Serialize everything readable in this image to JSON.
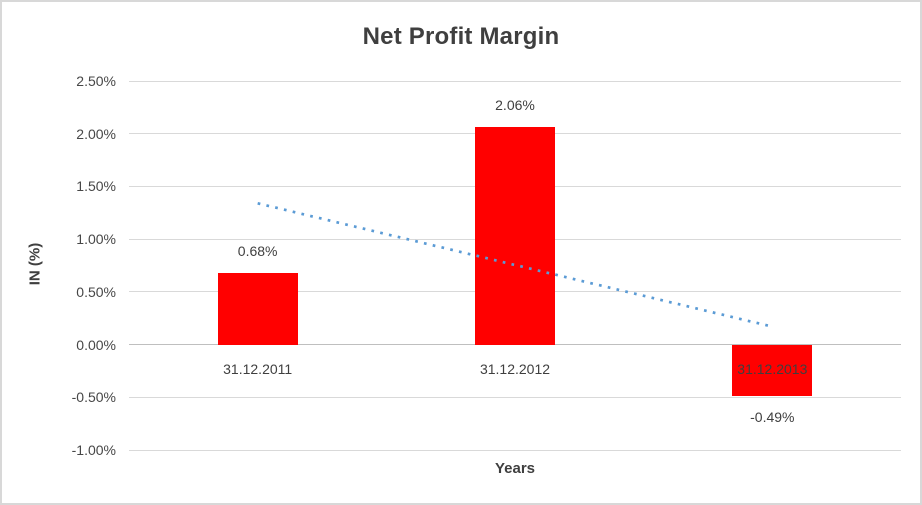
{
  "chart_data": {
    "type": "bar",
    "title": "Net Profit Margin",
    "xlabel": "Years",
    "ylabel": "IN (%)",
    "categories": [
      "31.12.2011",
      "31.12.2012",
      "31.12.2013"
    ],
    "values": [
      0.68,
      2.06,
      -0.49
    ],
    "data_labels": [
      "0.68%",
      "2.06%",
      "-0.49%"
    ],
    "ylim": [
      -1.0,
      2.5
    ],
    "ytick_step": 0.5,
    "yticks": [
      {
        "value": 2.5,
        "label": "2.50%"
      },
      {
        "value": 2.0,
        "label": "2.00%"
      },
      {
        "value": 1.5,
        "label": "1.50%"
      },
      {
        "value": 1.0,
        "label": "1.00%"
      },
      {
        "value": 0.5,
        "label": "0.50%"
      },
      {
        "value": 0.0,
        "label": "0.00%"
      },
      {
        "value": -0.5,
        "label": "-0.50%"
      },
      {
        "value": -1.0,
        "label": "-1.00%"
      }
    ],
    "grid": true,
    "legend": "none",
    "trendline": {
      "type": "linear",
      "style": "dotted",
      "start_value": 1.34,
      "end_value": 0.17
    }
  },
  "colors": {
    "bar": "#FF0000",
    "trendline": "#5B9BD5",
    "gridline": "#D9D9D9",
    "zero_axis": "#BFBFBF",
    "text": "#474747",
    "title_text": "#3F3F3F",
    "frame_border": "#D8D8D8",
    "background": "#FFFFFF"
  }
}
